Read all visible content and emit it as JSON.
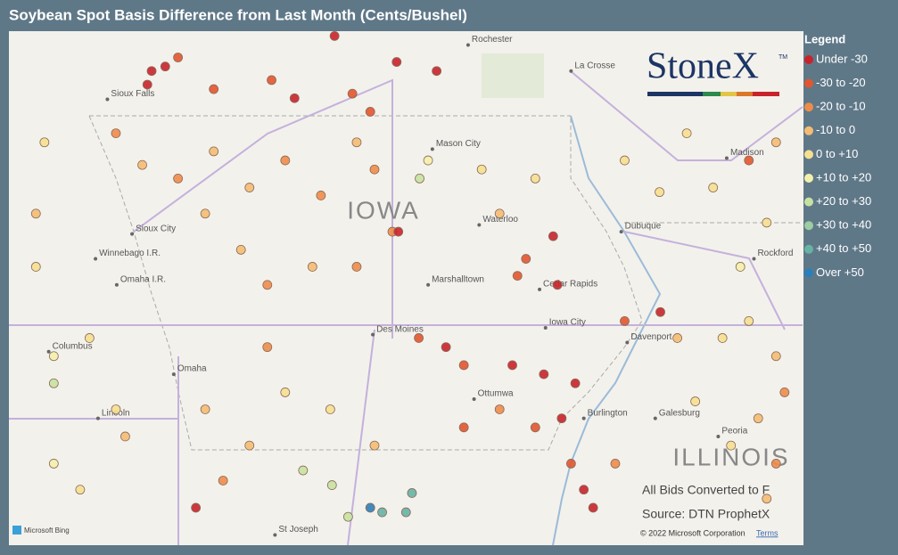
{
  "title": "Soybean Spot Basis Difference from Last Month (Cents/Bushel)",
  "legend": {
    "title": "Legend",
    "items": [
      {
        "label": "Under -30",
        "color": "#c8232b"
      },
      {
        "label": "-30 to -20",
        "color": "#e2552f"
      },
      {
        "label": "-20 to -10",
        "color": "#ee8c4a"
      },
      {
        "label": "-10 to 0",
        "color": "#f4bc72"
      },
      {
        "label": "0 to +10",
        "color": "#f6df90"
      },
      {
        "label": "+10 to +20",
        "color": "#f4f0ab"
      },
      {
        "label": "+20 to +30",
        "color": "#c6e2a0"
      },
      {
        "label": "+30 to +40",
        "color": "#9bcea0"
      },
      {
        "label": "+40 to +50",
        "color": "#66b3a4"
      },
      {
        "label": "Over +50",
        "color": "#2b7fba"
      }
    ]
  },
  "logo": {
    "text": "StoneX",
    "mark": "TM"
  },
  "states": [
    "IOWA",
    "ILLINOIS"
  ],
  "places": [
    {
      "name": "Rochester",
      "lon": -92.47,
      "lat": 44.11
    },
    {
      "name": "La Crosse",
      "lon": -91.26,
      "lat": 43.88
    },
    {
      "name": "Sioux Falls",
      "lon": -96.71,
      "lat": 43.63
    },
    {
      "name": "Mason City",
      "lon": -92.89,
      "lat": 43.19
    },
    {
      "name": "Madison",
      "lon": -89.43,
      "lat": 43.11
    },
    {
      "name": "Sioux City",
      "lon": -96.42,
      "lat": 42.44
    },
    {
      "name": "Waterloo",
      "lon": -92.34,
      "lat": 42.52
    },
    {
      "name": "Dubuque",
      "lon": -90.67,
      "lat": 42.46
    },
    {
      "name": "Rockford",
      "lon": -89.11,
      "lat": 42.22
    },
    {
      "name": "Winnebago I.R.",
      "lon": -96.85,
      "lat": 42.22
    },
    {
      "name": "Omaha I.R.",
      "lon": -96.6,
      "lat": 41.99
    },
    {
      "name": "Marshalltown",
      "lon": -92.94,
      "lat": 41.99
    },
    {
      "name": "Cedar Rapids",
      "lon": -91.63,
      "lat": 41.95
    },
    {
      "name": "Iowa City",
      "lon": -91.56,
      "lat": 41.61
    },
    {
      "name": "Davenport",
      "lon": -90.6,
      "lat": 41.48
    },
    {
      "name": "Des Moines",
      "lon": -93.59,
      "lat": 41.55
    },
    {
      "name": "Columbus",
      "lon": -97.4,
      "lat": 41.4
    },
    {
      "name": "Omaha",
      "lon": -95.93,
      "lat": 41.2
    },
    {
      "name": "Ottumwa",
      "lon": -92.4,
      "lat": 40.98
    },
    {
      "name": "Burlington",
      "lon": -91.11,
      "lat": 40.81
    },
    {
      "name": "Galesburg",
      "lon": -90.27,
      "lat": 40.81
    },
    {
      "name": "Lincoln",
      "lon": -96.82,
      "lat": 40.81
    },
    {
      "name": "Peoria",
      "lon": -89.53,
      "lat": 40.65
    },
    {
      "name": "St Joseph",
      "lon": -94.74,
      "lat": 39.78
    }
  ],
  "points": [
    [
      -96.19,
      43.88,
      0
    ],
    [
      -96.03,
      43.92,
      0
    ],
    [
      -95.88,
      44.0,
      1
    ],
    [
      -96.24,
      43.76,
      0
    ],
    [
      -95.46,
      43.72,
      1
    ],
    [
      -94.78,
      43.8,
      1
    ],
    [
      -94.51,
      43.64,
      0
    ],
    [
      -94.04,
      44.19,
      0
    ],
    [
      -93.62,
      43.52,
      1
    ],
    [
      -93.31,
      43.96,
      0
    ],
    [
      -92.84,
      43.88,
      0
    ],
    [
      -93.83,
      43.68,
      1
    ],
    [
      -96.61,
      43.33,
      2
    ],
    [
      -96.3,
      43.05,
      3
    ],
    [
      -95.88,
      42.93,
      2
    ],
    [
      -95.46,
      43.17,
      3
    ],
    [
      -95.04,
      42.85,
      3
    ],
    [
      -94.62,
      43.09,
      2
    ],
    [
      -94.2,
      42.78,
      2
    ],
    [
      -93.78,
      43.25,
      3
    ],
    [
      -93.57,
      43.01,
      2
    ],
    [
      -95.56,
      42.62,
      3
    ],
    [
      -95.14,
      42.3,
      3
    ],
    [
      -94.83,
      41.99,
      2
    ],
    [
      -94.3,
      42.15,
      3
    ],
    [
      -93.78,
      42.15,
      2
    ],
    [
      -93.36,
      42.46,
      2
    ],
    [
      -93.29,
      42.46,
      0
    ],
    [
      -92.94,
      43.09,
      5
    ],
    [
      -93.04,
      42.93,
      6
    ],
    [
      -92.31,
      43.01,
      4
    ],
    [
      -91.68,
      42.93,
      4
    ],
    [
      -92.1,
      42.62,
      3
    ],
    [
      -91.89,
      42.07,
      1
    ],
    [
      -91.42,
      41.99,
      0
    ],
    [
      -91.79,
      42.22,
      1
    ],
    [
      -91.47,
      42.42,
      0
    ],
    [
      -93.05,
      41.52,
      1
    ],
    [
      -92.73,
      41.44,
      0
    ],
    [
      -92.52,
      41.28,
      1
    ],
    [
      -91.95,
      41.28,
      0
    ],
    [
      -91.58,
      41.2,
      0
    ],
    [
      -91.21,
      41.12,
      0
    ],
    [
      -91.37,
      40.81,
      0
    ],
    [
      -91.68,
      40.73,
      1
    ],
    [
      -91.11,
      40.18,
      0
    ],
    [
      -91.0,
      40.02,
      0
    ],
    [
      -91.26,
      40.41,
      1
    ],
    [
      -90.74,
      40.41,
      2
    ],
    [
      -90.63,
      41.67,
      1
    ],
    [
      -90.21,
      41.75,
      0
    ],
    [
      -90.01,
      41.52,
      3
    ],
    [
      -93.62,
      40.02,
      9
    ],
    [
      -93.48,
      39.98,
      8
    ],
    [
      -93.13,
      40.15,
      8
    ],
    [
      -93.2,
      39.98,
      8
    ],
    [
      -93.88,
      39.94,
      6
    ],
    [
      -94.07,
      40.22,
      6
    ],
    [
      -94.41,
      40.35,
      6
    ],
    [
      -97.55,
      42.15,
      4
    ],
    [
      -97.34,
      41.36,
      5
    ],
    [
      -96.92,
      41.52,
      4
    ],
    [
      -96.61,
      40.89,
      4
    ],
    [
      -97.34,
      40.41,
      5
    ],
    [
      -97.03,
      40.18,
      4
    ],
    [
      -96.5,
      40.65,
      3
    ],
    [
      -97.34,
      41.12,
      6
    ],
    [
      -97.55,
      42.62,
      3
    ],
    [
      -97.45,
      43.25,
      4
    ],
    [
      -95.56,
      40.89,
      3
    ],
    [
      -95.04,
      40.57,
      3
    ],
    [
      -95.67,
      40.02,
      0
    ],
    [
      -95.35,
      40.26,
      2
    ],
    [
      -94.62,
      41.04,
      4
    ],
    [
      -94.83,
      41.44,
      2
    ],
    [
      -94.09,
      40.89,
      4
    ],
    [
      -93.57,
      40.57,
      3
    ],
    [
      -92.52,
      40.73,
      1
    ],
    [
      -92.1,
      40.89,
      2
    ],
    [
      -89.48,
      41.52,
      4
    ],
    [
      -89.17,
      41.67,
      4
    ],
    [
      -88.85,
      41.36,
      3
    ],
    [
      -88.75,
      41.04,
      2
    ],
    [
      -89.06,
      40.81,
      3
    ],
    [
      -89.8,
      40.96,
      4
    ],
    [
      -89.38,
      40.57,
      4
    ],
    [
      -88.85,
      40.41,
      2
    ],
    [
      -88.96,
      40.1,
      3
    ],
    [
      -89.27,
      42.15,
      5
    ],
    [
      -88.96,
      42.54,
      4
    ],
    [
      -89.59,
      42.85,
      4
    ],
    [
      -90.22,
      42.81,
      4
    ],
    [
      -89.17,
      43.09,
      1
    ],
    [
      -88.85,
      43.25,
      3
    ],
    [
      -89.9,
      43.33,
      4
    ],
    [
      -90.63,
      43.09,
      4
    ]
  ],
  "notes": {
    "bids": "All Bids Converted to F",
    "source": "Source: DTN ProphetX",
    "copyright": "© 2022 Microsoft Corporation",
    "terms": "Terms",
    "bing": "Microsoft Bing"
  }
}
